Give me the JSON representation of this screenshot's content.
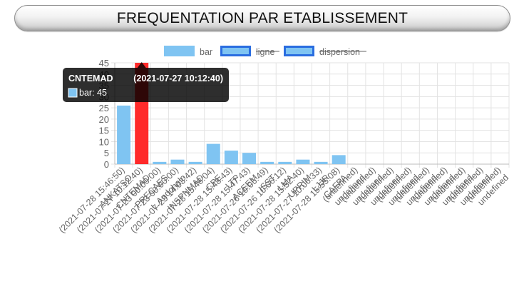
{
  "page": {
    "title": "FREQUENTATION PAR ETABLISSEMENT"
  },
  "colors": {
    "bar": "#7fc4f2",
    "bar_highlight": "#ff2a2a",
    "legend_border": "#2a6de0",
    "axis_text": "#666666",
    "grid": "#e3e3e3"
  },
  "chart_data": {
    "type": "bar",
    "ylim": [
      0,
      45
    ],
    "yticks": [
      0,
      5,
      10,
      15,
      20,
      25,
      30,
      35,
      40,
      45
    ],
    "grid": true,
    "legend_position": "top",
    "legend": [
      {
        "label": "bar",
        "hidden": false,
        "style": "bar"
      },
      {
        "label": "ligne",
        "hidden": true,
        "style": "outlined"
      },
      {
        "label": "dispersion",
        "hidden": true,
        "style": "outlined"
      }
    ],
    "categories": [
      {
        "name": "ANKATSO",
        "date": "(2021-07-28 15:46:50)"
      },
      {
        "name": "CNTEMAD",
        "date": "(2021-07-27 10:12:40)"
      },
      {
        "name": "PRECAES",
        "date": "(2021-07-23 00:00:00)"
      },
      {
        "name": "L.Andohalo",
        "date": "(2021-07-23 00:00:00)"
      },
      {
        "name": "INSPNMAD",
        "date": "(2021-07-23 14:03:42)"
      },
      {
        "name": "CPE",
        "date": "(2021-07-28 15:48:04)"
      },
      {
        "name": "LTP",
        "date": "(2021-07-28 15:48:43)"
      },
      {
        "name": "ACEEM",
        "date": "(2021-07-28 15:47:43)"
      },
      {
        "name": "ISST",
        "date": "(2021-07-26 10:05:49)"
      },
      {
        "name": "LMA",
        "date": "(2021-07-26 10:06:12)"
      },
      {
        "name": "UPRIM",
        "date": "(2021-07-28 15:52:40)"
      },
      {
        "name": "LJJR",
        "date": "(2021-07-27 10:06:33)"
      },
      {
        "name": "CAFPA",
        "date": "(2021-07-28 15:55:08)"
      },
      {
        "name": "undefined",
        "date": "(undefined)"
      },
      {
        "name": "undefined",
        "date": "(undefined)"
      },
      {
        "name": "undefined",
        "date": "(undefined)"
      },
      {
        "name": "undefined",
        "date": "(undefined)"
      },
      {
        "name": "undefined",
        "date": "(undefined)"
      },
      {
        "name": "undefined",
        "date": "(undefined)"
      },
      {
        "name": "undefined",
        "date": "(undefined)"
      },
      {
        "name": "undefined",
        "date": "(undefined)"
      },
      {
        "name": "undefined",
        "date": "(undefined)"
      }
    ],
    "values": [
      26,
      45,
      1,
      2,
      1,
      9,
      6,
      5,
      1,
      1,
      2,
      1,
      4,
      null,
      null,
      null,
      null,
      null,
      null,
      null,
      null,
      null
    ],
    "highlight_index": 1,
    "tooltip": {
      "title": "CNTEMAD      (2021-07-27 10:12:40)",
      "line": "bar: 45"
    }
  }
}
